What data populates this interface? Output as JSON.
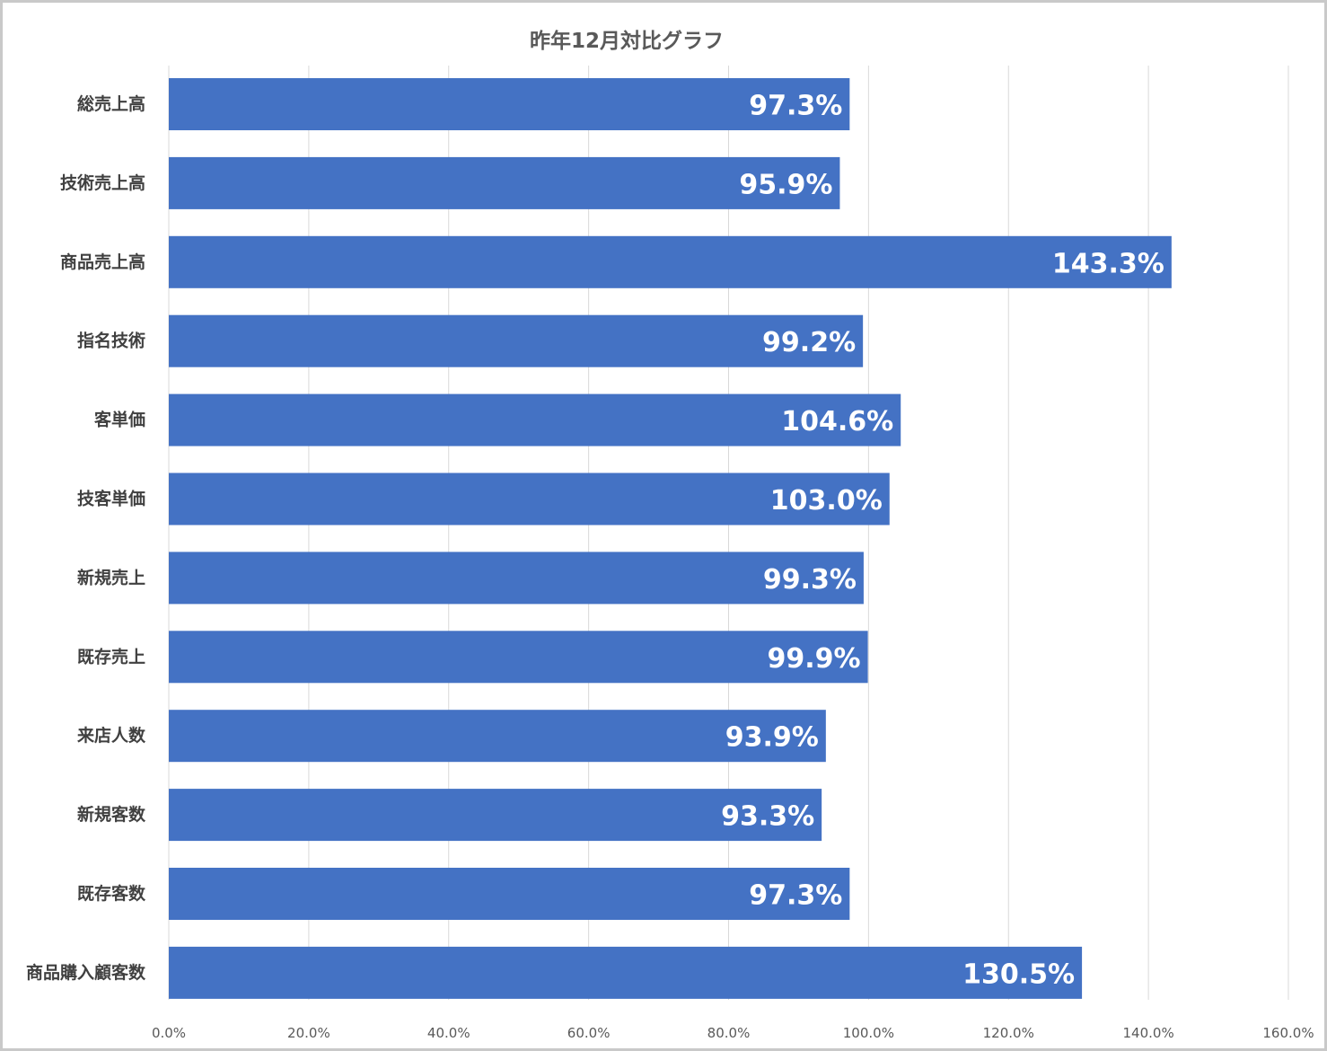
{
  "chart_data": {
    "type": "bar",
    "orientation": "horizontal",
    "title": "昨年12月対比グラフ",
    "categories": [
      "総売上高",
      "技術売上高",
      "商品売上高",
      "指名技術",
      "客単価",
      "技客単価",
      "新規売上",
      "既存売上",
      "来店人数",
      "新規客数",
      "既存客数",
      "商品購入顧客数"
    ],
    "values": [
      97.3,
      95.9,
      143.3,
      99.2,
      104.6,
      103.0,
      99.3,
      99.9,
      93.9,
      93.3,
      97.3,
      130.5
    ],
    "data_labels": [
      "97.3%",
      "95.9%",
      "143.3%",
      "99.2%",
      "104.6%",
      "103.0%",
      "99.3%",
      "99.9%",
      "93.9%",
      "93.3%",
      "97.3%",
      "130.5%"
    ],
    "x_ticks": [
      "0.0%",
      "20.0%",
      "40.0%",
      "60.0%",
      "80.0%",
      "100.0%",
      "120.0%",
      "140.0%",
      "160.0%"
    ],
    "xlim": [
      0,
      160
    ],
    "grid": "vertical",
    "legend": "none",
    "bar_color": "#4472C4",
    "grid_color": "#D9D9D9",
    "title_color": "#595959",
    "label_color": "#404040"
  }
}
